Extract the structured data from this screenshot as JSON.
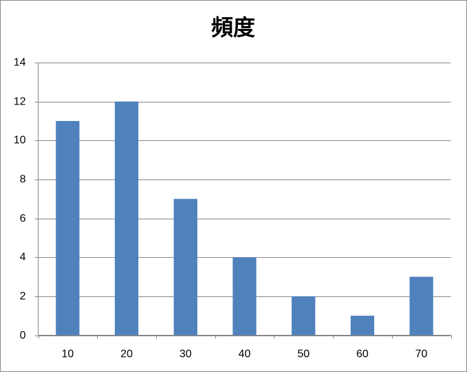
{
  "chart_data": {
    "type": "bar",
    "title": "頻度",
    "categories": [
      "10",
      "20",
      "30",
      "40",
      "50",
      "60",
      "70"
    ],
    "values": [
      11,
      12,
      7,
      4,
      2,
      1,
      3
    ],
    "color": "#4f81bd",
    "ylim": [
      0,
      14
    ],
    "yticks": [
      0,
      2,
      4,
      6,
      8,
      10,
      12,
      14
    ],
    "grid": true
  }
}
